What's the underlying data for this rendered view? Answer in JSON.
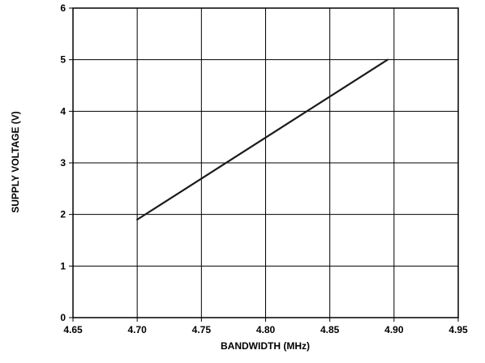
{
  "chart_data": {
    "type": "line",
    "title": "",
    "xlabel": "BANDWIDTH (MHz)",
    "ylabel": "SUPPLY VOLTAGE (V)",
    "xlim": [
      4.65,
      4.95
    ],
    "ylim": [
      0,
      6
    ],
    "x_ticks": [
      "4.65",
      "4.70",
      "4.75",
      "4.80",
      "4.85",
      "4.90",
      "4.95"
    ],
    "y_ticks": [
      "0",
      "1",
      "2",
      "3",
      "4",
      "5",
      "6"
    ],
    "grid": true,
    "legend": "none",
    "series": [
      {
        "color": "#1a1a1a",
        "points": [
          [
            4.7,
            1.9
          ],
          [
            4.895,
            5.0
          ]
        ]
      }
    ]
  }
}
